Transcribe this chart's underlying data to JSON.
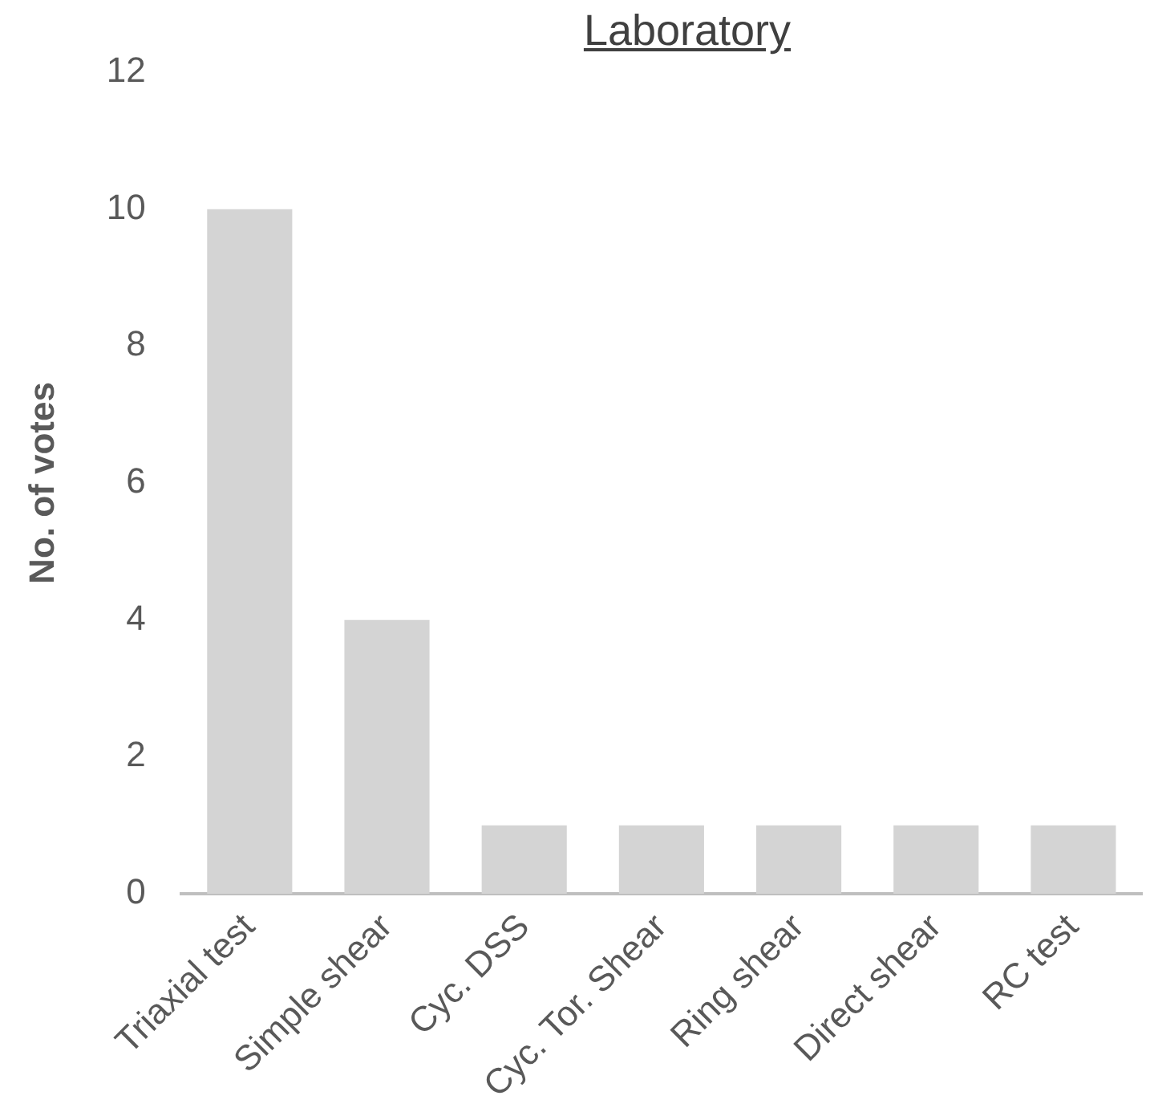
{
  "chart_data": {
    "type": "bar",
    "title": "Laboratory",
    "ylabel": "No. of votes",
    "categories": [
      "Triaxial test",
      "Simple shear",
      "Cyc. DSS",
      "Cyc. Tor. Shear",
      "Ring shear",
      "Direct shear",
      "RC test"
    ],
    "values": [
      10,
      4,
      1,
      1,
      1,
      1,
      1
    ],
    "color": "#d4d4d4",
    "ylim": [
      0,
      12
    ],
    "yticks": [
      0,
      2,
      4,
      6,
      8,
      10,
      12
    ],
    "grid": false,
    "legend": false
  }
}
